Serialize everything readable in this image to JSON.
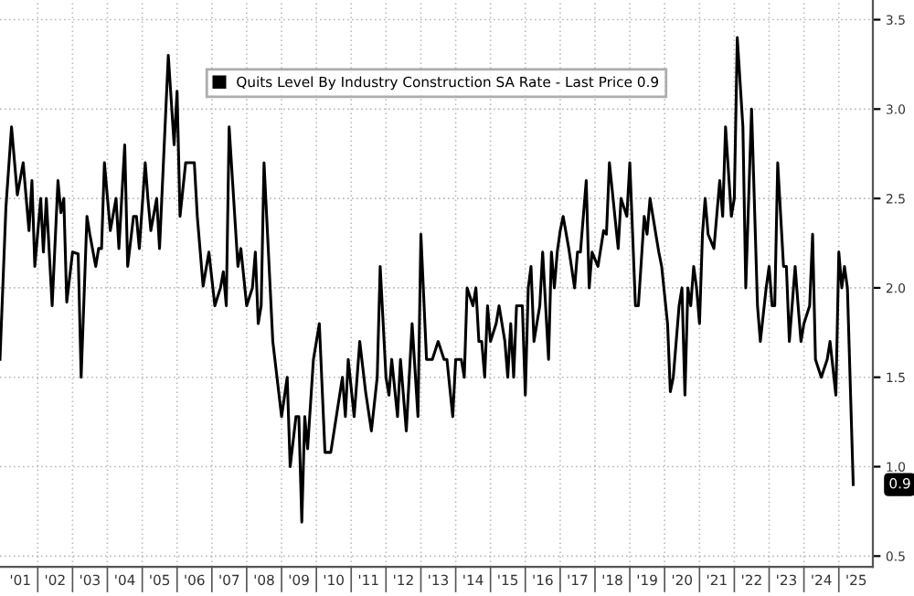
{
  "chart_data": {
    "type": "line",
    "series": [
      {
        "name": "Quits Level By Industry Construction SA Rate - Last Price 0.9",
        "color": "#000000",
        "x": [
          "2000-12",
          "2001-02",
          "2001-04",
          "2001-06",
          "2001-08",
          "2001-10",
          "2001-11",
          "2001-12",
          "2002-02",
          "2002-03",
          "2002-04",
          "2002-06",
          "2002-08",
          "2002-09",
          "2002-10",
          "2002-11",
          "2003-01",
          "2003-03",
          "2003-04",
          "2003-06",
          "2003-07",
          "2003-09",
          "2003-10",
          "2003-11",
          "2003-12",
          "2004-02",
          "2004-04",
          "2004-05",
          "2004-07",
          "2004-08",
          "2004-10",
          "2004-11",
          "2004-12",
          "2005-02",
          "2005-03",
          "2005-04",
          "2005-06",
          "2005-07",
          "2005-10",
          "2005-12",
          "2006-01",
          "2006-02",
          "2006-04",
          "2006-07",
          "2006-08",
          "2006-10",
          "2006-12",
          "2007-02",
          "2007-04",
          "2007-05",
          "2007-06",
          "2007-07",
          "2007-10",
          "2007-11",
          "2008-01",
          "2008-03",
          "2008-04",
          "2008-05",
          "2008-06",
          "2008-07",
          "2008-10",
          "2009-01",
          "2009-03",
          "2009-04",
          "2009-06",
          "2009-07",
          "2009-08",
          "2009-09",
          "2009-10",
          "2009-12",
          "2010-02",
          "2010-04",
          "2010-06",
          "2010-10",
          "2010-11",
          "2010-12",
          "2011-02",
          "2011-04",
          "2011-06",
          "2011-08",
          "2011-10",
          "2011-11",
          "2012-01",
          "2012-02",
          "2012-03",
          "2012-05",
          "2012-06",
          "2012-08",
          "2012-10",
          "2012-12",
          "2013-01",
          "2013-03",
          "2013-05",
          "2013-07",
          "2013-09",
          "2013-10",
          "2013-12",
          "2014-01",
          "2014-03",
          "2014-04",
          "2014-05",
          "2014-07",
          "2014-08",
          "2014-09",
          "2014-10",
          "2014-11",
          "2014-12",
          "2015-01",
          "2015-03",
          "2015-04",
          "2015-06",
          "2015-07",
          "2015-08",
          "2015-09",
          "2015-10",
          "2015-12",
          "2016-01",
          "2016-02",
          "2016-03",
          "2016-04",
          "2016-05",
          "2016-06",
          "2016-07",
          "2016-09",
          "2016-10",
          "2016-11",
          "2016-12",
          "2017-01",
          "2017-02",
          "2017-04",
          "2017-06",
          "2017-07",
          "2017-08",
          "2017-10",
          "2017-11",
          "2017-12",
          "2018-02",
          "2018-04",
          "2018-05",
          "2018-06",
          "2018-09",
          "2018-10",
          "2018-12",
          "2019-01",
          "2019-03",
          "2019-04",
          "2019-06",
          "2019-07",
          "2019-08",
          "2019-10",
          "2019-11",
          "2019-12",
          "2020-02",
          "2020-03",
          "2020-04",
          "2020-06",
          "2020-07",
          "2020-08",
          "2020-09",
          "2020-10",
          "2020-11",
          "2020-12",
          "2021-01",
          "2021-02",
          "2021-03",
          "2021-04",
          "2021-06",
          "2021-08",
          "2021-09",
          "2021-10",
          "2021-12",
          "2022-01",
          "2022-02",
          "2022-04",
          "2022-05",
          "2022-07",
          "2022-09",
          "2022-10",
          "2022-12",
          "2023-01",
          "2023-02",
          "2023-03",
          "2023-04",
          "2023-06",
          "2023-07",
          "2023-08",
          "2023-10",
          "2023-11",
          "2023-12",
          "2024-01",
          "2024-03",
          "2024-04",
          "2024-05",
          "2024-07",
          "2024-09",
          "2024-10",
          "2024-12",
          "2025-01",
          "2025-02",
          "2025-03",
          "2025-04",
          "2025-06"
        ],
        "values": [
          1.6,
          2.45,
          2.9,
          2.52,
          2.7,
          2.32,
          2.6,
          2.12,
          2.5,
          2.2,
          2.5,
          1.9,
          2.6,
          2.42,
          2.5,
          1.92,
          2.2,
          2.19,
          1.5,
          2.4,
          2.3,
          2.12,
          2.22,
          2.22,
          2.7,
          2.32,
          2.5,
          2.22,
          2.8,
          2.12,
          2.4,
          2.4,
          2.22,
          2.7,
          2.5,
          2.32,
          2.5,
          2.22,
          3.3,
          2.8,
          3.1,
          2.4,
          2.7,
          2.7,
          2.4,
          2.01,
          2.2,
          1.9,
          2.0,
          2.09,
          1.9,
          2.9,
          2.12,
          2.22,
          1.9,
          2.0,
          2.2,
          1.8,
          1.9,
          2.7,
          1.7,
          1.28,
          1.5,
          1.0,
          1.28,
          1.28,
          0.69,
          1.28,
          1.1,
          1.6,
          1.8,
          1.08,
          1.08,
          1.5,
          1.28,
          1.6,
          1.28,
          1.7,
          1.42,
          1.2,
          1.5,
          2.12,
          1.5,
          1.4,
          1.6,
          1.28,
          1.6,
          1.2,
          1.8,
          1.28,
          2.3,
          1.6,
          1.6,
          1.7,
          1.6,
          1.6,
          1.28,
          1.6,
          1.6,
          1.5,
          2.0,
          1.9,
          2.0,
          1.7,
          1.7,
          1.5,
          1.9,
          1.7,
          1.8,
          1.9,
          1.7,
          1.5,
          1.8,
          1.5,
          1.9,
          1.9,
          1.4,
          2.0,
          2.12,
          1.7,
          1.8,
          1.9,
          2.2,
          1.6,
          2.2,
          2.0,
          2.2,
          2.32,
          2.4,
          2.22,
          2.0,
          2.2,
          2.2,
          2.6,
          2.0,
          2.2,
          2.12,
          2.32,
          2.3,
          2.7,
          2.22,
          2.5,
          2.4,
          2.7,
          1.9,
          1.9,
          2.4,
          2.3,
          2.5,
          2.3,
          2.2,
          2.12,
          1.8,
          1.42,
          1.5,
          1.9,
          2.0,
          1.4,
          2.0,
          1.9,
          2.12,
          2.0,
          1.8,
          2.3,
          2.5,
          2.3,
          2.22,
          2.6,
          2.4,
          2.9,
          2.4,
          2.5,
          3.4,
          2.9,
          2.0,
          3.0,
          1.9,
          1.7,
          2.0,
          2.12,
          1.9,
          1.9,
          2.7,
          2.12,
          2.12,
          1.7,
          2.12,
          1.9,
          1.7,
          1.8,
          1.9,
          2.3,
          1.6,
          1.5,
          1.6,
          1.7,
          1.4,
          2.2,
          2.0,
          2.12,
          2.0,
          0.9
        ]
      }
    ],
    "xlim": [
      "2000-12",
      "2025-12-24"
    ],
    "xticks": [
      {
        "value": "2001-07-02",
        "label": "'01"
      },
      {
        "value": "2002-01-01",
        "label": null
      },
      {
        "value": "2002-07-02",
        "label": "'02"
      },
      {
        "value": "2003-01-01",
        "label": null
      },
      {
        "value": "2003-07-02",
        "label": "'03"
      },
      {
        "value": "2004-01-01",
        "label": null
      },
      {
        "value": "2004-07-02",
        "label": "'04"
      },
      {
        "value": "2005-01-01",
        "label": null
      },
      {
        "value": "2005-07-02",
        "label": "'05"
      },
      {
        "value": "2006-01-01",
        "label": null
      },
      {
        "value": "2006-07-02",
        "label": "'06"
      },
      {
        "value": "2007-01-01",
        "label": null
      },
      {
        "value": "2007-07-02",
        "label": "'07"
      },
      {
        "value": "2008-01-01",
        "label": null
      },
      {
        "value": "2008-07-02",
        "label": "'08"
      },
      {
        "value": "2009-01-01",
        "label": null
      },
      {
        "value": "2009-07-02",
        "label": "'09"
      },
      {
        "value": "2010-01-01",
        "label": null
      },
      {
        "value": "2010-07-02",
        "label": "'10"
      },
      {
        "value": "2011-01-01",
        "label": null
      },
      {
        "value": "2011-07-02",
        "label": "'11"
      },
      {
        "value": "2012-01-01",
        "label": null
      },
      {
        "value": "2012-07-02",
        "label": "'12"
      },
      {
        "value": "2013-01-01",
        "label": null
      },
      {
        "value": "2013-07-02",
        "label": "'13"
      },
      {
        "value": "2014-01-01",
        "label": null
      },
      {
        "value": "2014-07-02",
        "label": "'14"
      },
      {
        "value": "2015-01-01",
        "label": null
      },
      {
        "value": "2015-07-02",
        "label": "'15"
      },
      {
        "value": "2016-01-01",
        "label": null
      },
      {
        "value": "2016-07-02",
        "label": "'16"
      },
      {
        "value": "2017-01-01",
        "label": null
      },
      {
        "value": "2017-07-02",
        "label": "'17"
      },
      {
        "value": "2018-01-01",
        "label": null
      },
      {
        "value": "2018-07-02",
        "label": "'18"
      },
      {
        "value": "2019-01-01",
        "label": null
      },
      {
        "value": "2019-07-02",
        "label": "'19"
      },
      {
        "value": "2020-01-01",
        "label": null
      },
      {
        "value": "2020-07-02",
        "label": "'20"
      },
      {
        "value": "2021-01-01",
        "label": null
      },
      {
        "value": "2021-07-02",
        "label": "'21"
      },
      {
        "value": "2022-01-01",
        "label": null
      },
      {
        "value": "2022-07-02",
        "label": "'22"
      },
      {
        "value": "2023-01-01",
        "label": null
      },
      {
        "value": "2023-07-02",
        "label": "'23"
      },
      {
        "value": "2024-01-01",
        "label": null
      },
      {
        "value": "2024-07-02",
        "label": "'24"
      },
      {
        "value": "2025-01-01",
        "label": null
      },
      {
        "value": "2025-07-02",
        "label": "'25"
      }
    ],
    "ylim": [
      0.44,
      3.61
    ],
    "yticks": [
      0.5,
      {
        "value": 1,
        "label": "1.0"
      },
      1.5,
      {
        "value": 2,
        "label": "2.0"
      },
      2.5,
      {
        "value": 3,
        "label": "3.0"
      },
      3.5
    ],
    "annotations": [
      {
        "text": "0.9",
        "x": "2025-06",
        "y": 0.9
      }
    ],
    "grid": true,
    "legend": "top",
    "marker": "none",
    "line_style": "solid"
  }
}
